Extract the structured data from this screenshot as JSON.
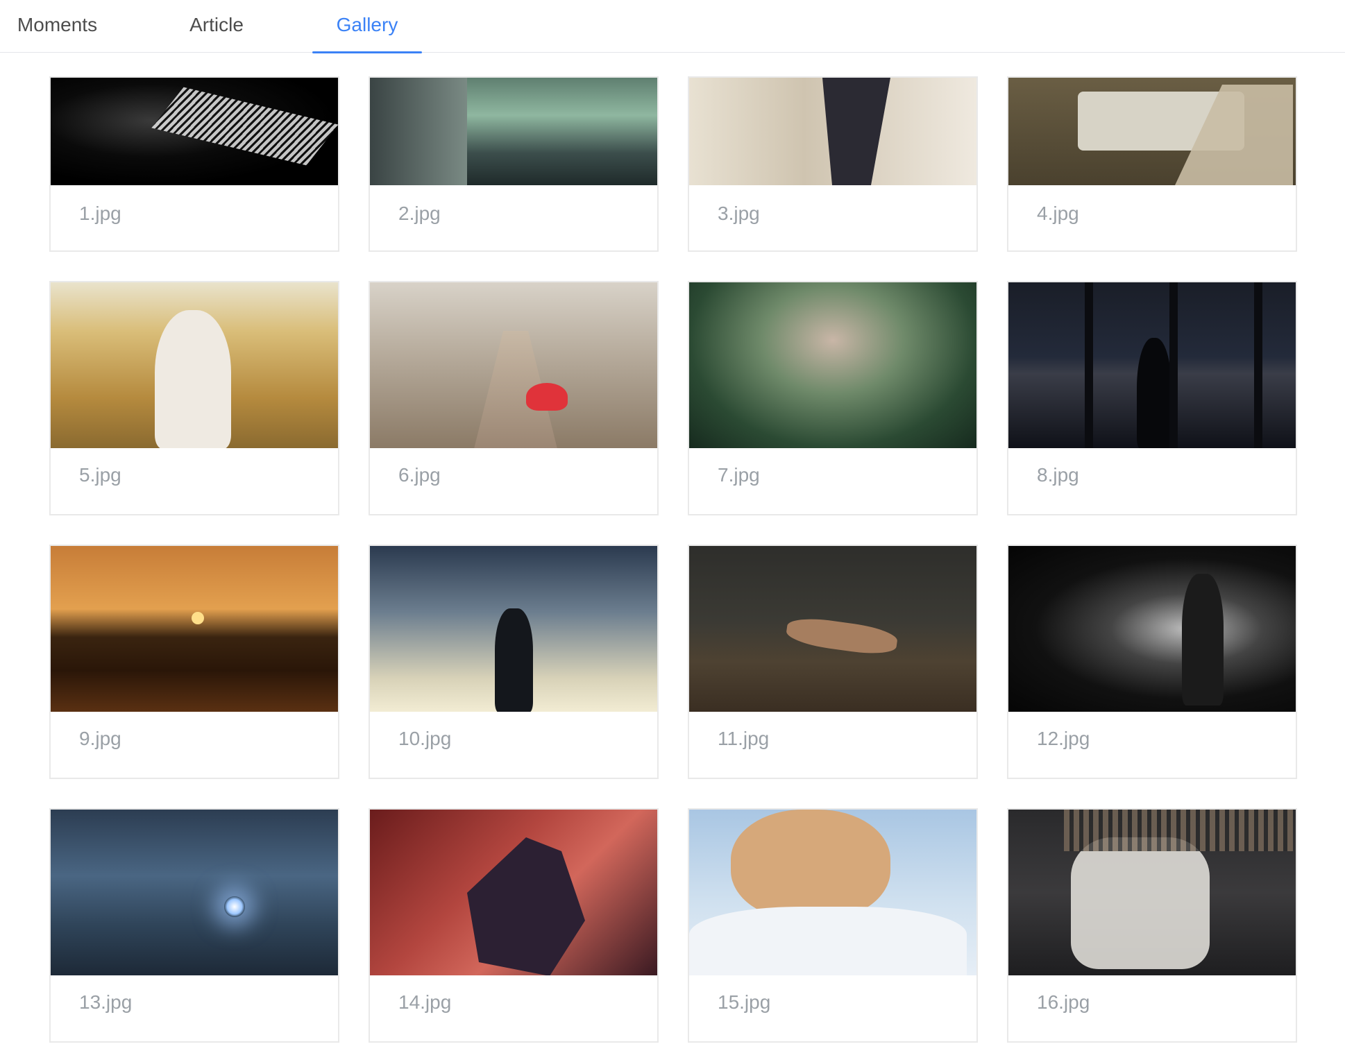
{
  "tabs": [
    {
      "label": "Moments",
      "active": false
    },
    {
      "label": "Article",
      "active": false
    },
    {
      "label": "Gallery",
      "active": true
    }
  ],
  "accent_color": "#3b82f6",
  "gallery": {
    "items": [
      {
        "caption": "1.jpg"
      },
      {
        "caption": "2.jpg"
      },
      {
        "caption": "3.jpg"
      },
      {
        "caption": "4.jpg"
      },
      {
        "caption": "5.jpg"
      },
      {
        "caption": "6.jpg"
      },
      {
        "caption": "7.jpg"
      },
      {
        "caption": "8.jpg"
      },
      {
        "caption": "9.jpg"
      },
      {
        "caption": "10.jpg"
      },
      {
        "caption": "11.jpg"
      },
      {
        "caption": "12.jpg"
      },
      {
        "caption": "13.jpg"
      },
      {
        "caption": "14.jpg"
      },
      {
        "caption": "15.jpg"
      },
      {
        "caption": "16.jpg"
      }
    ]
  }
}
